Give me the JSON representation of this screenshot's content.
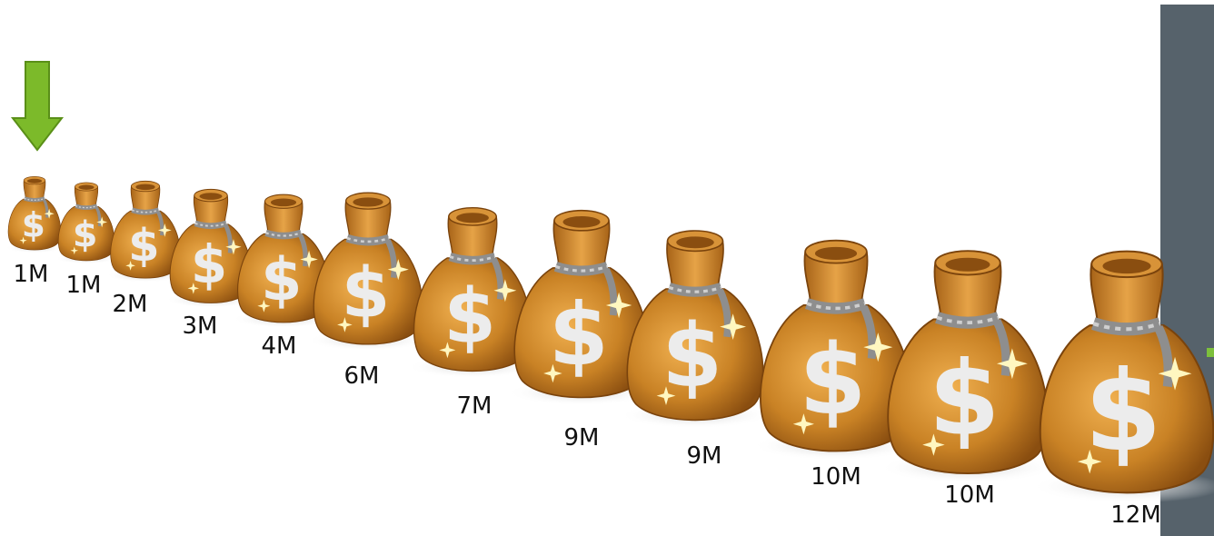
{
  "bags": [
    {
      "label": "1M"
    },
    {
      "label": "1M"
    },
    {
      "label": "2M"
    },
    {
      "label": "3M"
    },
    {
      "label": "4M"
    },
    {
      "label": "6M"
    },
    {
      "label": "7M"
    },
    {
      "label": "9M"
    },
    {
      "label": "9M"
    },
    {
      "label": "10M"
    },
    {
      "label": "10M"
    },
    {
      "label": "12M"
    }
  ]
}
